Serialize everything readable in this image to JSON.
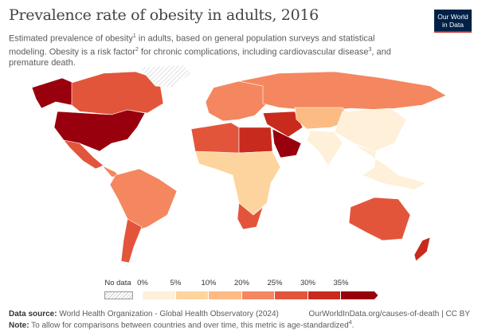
{
  "title": "Prevalence rate of obesity in adults, 2016",
  "subtitle_parts": [
    "Estimated prevalence of obesity",
    "1",
    " in adults, based on general population surveys and statistical modeling. Obesity is a risk factor",
    "2",
    " for chronic complications, including cardiovascular disease",
    "3",
    ", and premature death."
  ],
  "logo": {
    "line1": "Our World",
    "line2": "in Data"
  },
  "legend": {
    "no_data_label": "No data",
    "tick_labels": [
      "0%",
      "5%",
      "10%",
      "20%",
      "25%",
      "30%",
      "35%"
    ],
    "bins": [
      {
        "range": "0-5%",
        "color": "#fef0d9"
      },
      {
        "range": "5-10%",
        "color": "#fdd49e"
      },
      {
        "range": "10-20%",
        "color": "#fdbb84"
      },
      {
        "range": "20-25%",
        "color": "#f4875f"
      },
      {
        "range": "25-30%",
        "color": "#e3553b"
      },
      {
        "range": "30-35%",
        "color": "#c82a1e"
      },
      {
        "range": ">35%",
        "color": "#99000d"
      }
    ]
  },
  "map_regions": [
    {
      "name": "Alaska",
      "color": "#99000d"
    },
    {
      "name": "Canada",
      "color": "#e3553b"
    },
    {
      "name": "Greenland",
      "color": "no-data"
    },
    {
      "name": "United States",
      "color": "#99000d"
    },
    {
      "name": "Mexico",
      "color": "#e3553b"
    },
    {
      "name": "Central America",
      "color": "#f4875f"
    },
    {
      "name": "South America",
      "color": "#f4875f"
    },
    {
      "name": "Argentina",
      "color": "#e3553b"
    },
    {
      "name": "Europe",
      "color": "#f4875f"
    },
    {
      "name": "Russia",
      "color": "#f4875f"
    },
    {
      "name": "North Africa",
      "color": "#e3553b"
    },
    {
      "name": "Libya/Egypt",
      "color": "#c82a1e"
    },
    {
      "name": "Sub-Saharan Africa",
      "color": "#fdd49e"
    },
    {
      "name": "South Africa",
      "color": "#e3553b"
    },
    {
      "name": "Middle East",
      "color": "#c82a1e"
    },
    {
      "name": "Saudi Arabia",
      "color": "#99000d"
    },
    {
      "name": "Central Asia",
      "color": "#fdbb84"
    },
    {
      "name": "China",
      "color": "#fef0d9"
    },
    {
      "name": "India",
      "color": "#fef0d9"
    },
    {
      "name": "Southeast Asia",
      "color": "#fef0d9"
    },
    {
      "name": "Australia",
      "color": "#e3553b"
    },
    {
      "name": "New Zealand",
      "color": "#c82a1e"
    }
  ],
  "footer": {
    "source_label": "Data source:",
    "source_text": " World Health Organization - Global Health Observatory (2024)",
    "url": "OurWorldInData.org/causes-of-death | CC BY",
    "note_label": "Note:",
    "note_text": " To allow for comparisons between countries and over time, this metric is age-standardized",
    "note_sup": "4",
    "note_end": "."
  }
}
